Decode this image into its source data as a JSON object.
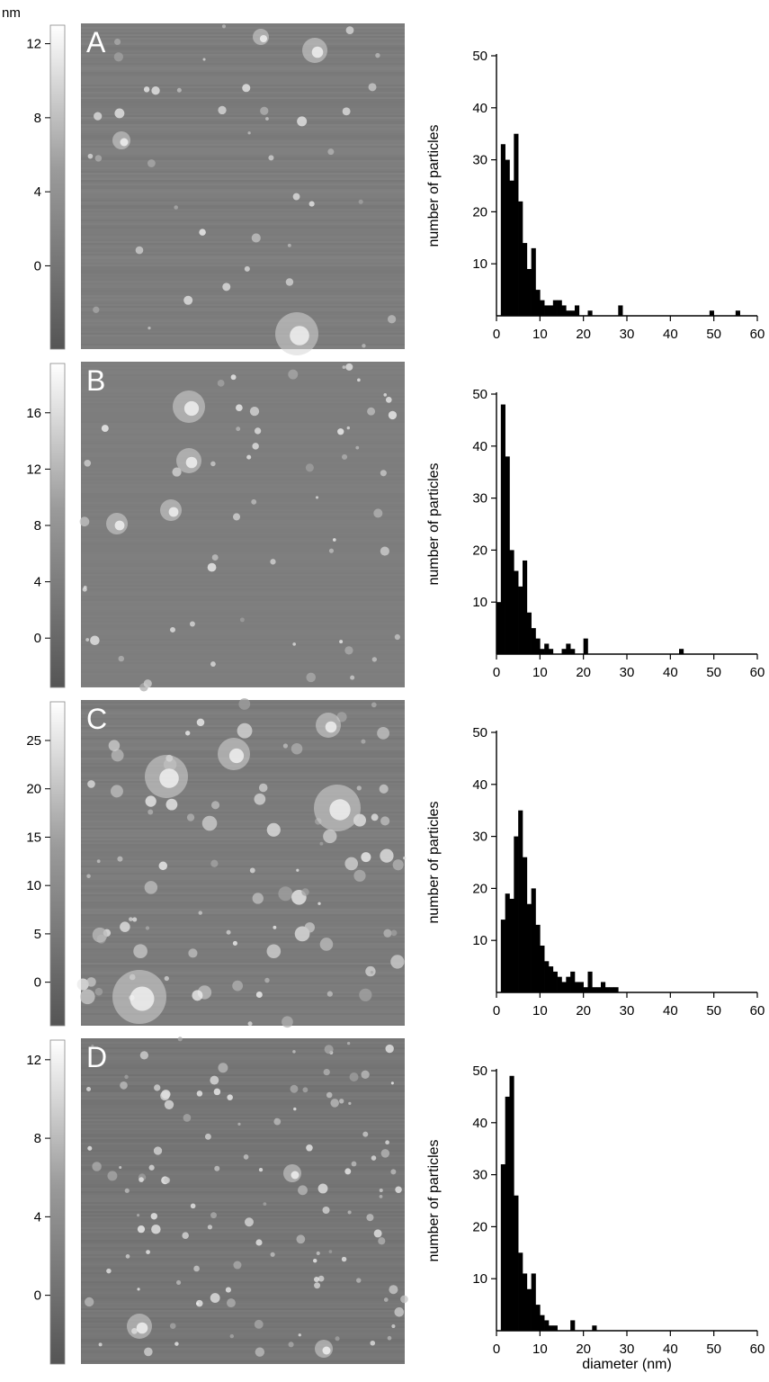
{
  "colorbar_unit": "nm",
  "panels": [
    {
      "letter": "A",
      "colorbar_ticks": [
        "12",
        "8",
        "4",
        "0"
      ],
      "colorbar_range": [
        -4.5,
        13
      ]
    },
    {
      "letter": "B",
      "colorbar_ticks": [
        "16",
        "12",
        "8",
        "4",
        "0"
      ],
      "colorbar_range": [
        -3.5,
        19.5
      ]
    },
    {
      "letter": "C",
      "colorbar_ticks": [
        "25",
        "20",
        "15",
        "10",
        "5",
        "0"
      ],
      "colorbar_range": [
        -4.5,
        29
      ]
    },
    {
      "letter": "D",
      "colorbar_ticks": [
        "12",
        "8",
        "4",
        "0"
      ],
      "colorbar_range": [
        -3.5,
        13
      ]
    }
  ],
  "chart_data": [
    {
      "type": "bar",
      "panel": "A",
      "ylabel": "number of particles",
      "xlabel": "",
      "xlim": [
        0,
        60
      ],
      "ylim": [
        0,
        50
      ],
      "x_ticks": [
        "0",
        "10",
        "20",
        "30",
        "40",
        "50",
        "60"
      ],
      "y_ticks": [
        "10",
        "20",
        "30",
        "40",
        "50"
      ],
      "bin_width": 1,
      "x": [
        1,
        2,
        3,
        4,
        5,
        6,
        7,
        8,
        9,
        10,
        11,
        12,
        13,
        14,
        15,
        16,
        17,
        18,
        19,
        20,
        21,
        28,
        49,
        55
      ],
      "values": [
        33,
        30,
        26,
        35,
        22,
        14,
        9,
        13,
        5,
        3,
        2,
        2,
        3,
        3,
        2,
        1,
        1,
        2,
        0,
        0,
        1,
        2,
        1,
        1
      ]
    },
    {
      "type": "bar",
      "panel": "B",
      "ylabel": "number of particles",
      "xlabel": "",
      "xlim": [
        0,
        60
      ],
      "ylim": [
        0,
        50
      ],
      "x_ticks": [
        "0",
        "10",
        "20",
        "30",
        "40",
        "50",
        "60"
      ],
      "y_ticks": [
        "10",
        "20",
        "30",
        "40",
        "50"
      ],
      "bin_width": 1,
      "x": [
        0,
        1,
        2,
        3,
        4,
        5,
        6,
        7,
        8,
        9,
        10,
        11,
        12,
        13,
        14,
        15,
        16,
        17,
        18,
        19,
        20,
        42
      ],
      "values": [
        10,
        48,
        38,
        20,
        16,
        13,
        18,
        8,
        5,
        3,
        1,
        2,
        1,
        0,
        0,
        1,
        2,
        1,
        0,
        0,
        3,
        1
      ]
    },
    {
      "type": "bar",
      "panel": "C",
      "ylabel": "number of particles",
      "xlabel": "",
      "xlim": [
        0,
        60
      ],
      "ylim": [
        0,
        50
      ],
      "x_ticks": [
        "0",
        "10",
        "20",
        "30",
        "40",
        "50",
        "60"
      ],
      "y_ticks": [
        "10",
        "20",
        "30",
        "40",
        "50"
      ],
      "bin_width": 1,
      "x": [
        1,
        2,
        3,
        4,
        5,
        6,
        7,
        8,
        9,
        10,
        11,
        12,
        13,
        14,
        15,
        16,
        17,
        18,
        19,
        20,
        21,
        22,
        23,
        24,
        25,
        26,
        27
      ],
      "values": [
        14,
        19,
        18,
        30,
        35,
        26,
        17,
        20,
        13,
        9,
        6,
        5,
        4,
        3,
        2,
        3,
        4,
        2,
        2,
        1,
        4,
        1,
        1,
        2,
        1,
        1,
        1
      ]
    },
    {
      "type": "bar",
      "panel": "D",
      "ylabel": "number of particles",
      "xlabel": "diameter (nm)",
      "xlim": [
        0,
        60
      ],
      "ylim": [
        0,
        50
      ],
      "x_ticks": [
        "0",
        "10",
        "20",
        "30",
        "40",
        "50",
        "60"
      ],
      "y_ticks": [
        "10",
        "20",
        "30",
        "40",
        "50"
      ],
      "bin_width": 1,
      "x": [
        1,
        2,
        3,
        4,
        5,
        6,
        7,
        8,
        9,
        10,
        11,
        12,
        13,
        17,
        22
      ],
      "values": [
        32,
        45,
        49,
        26,
        15,
        11,
        8,
        11,
        5,
        3,
        2,
        1,
        1,
        2,
        1
      ]
    }
  ]
}
